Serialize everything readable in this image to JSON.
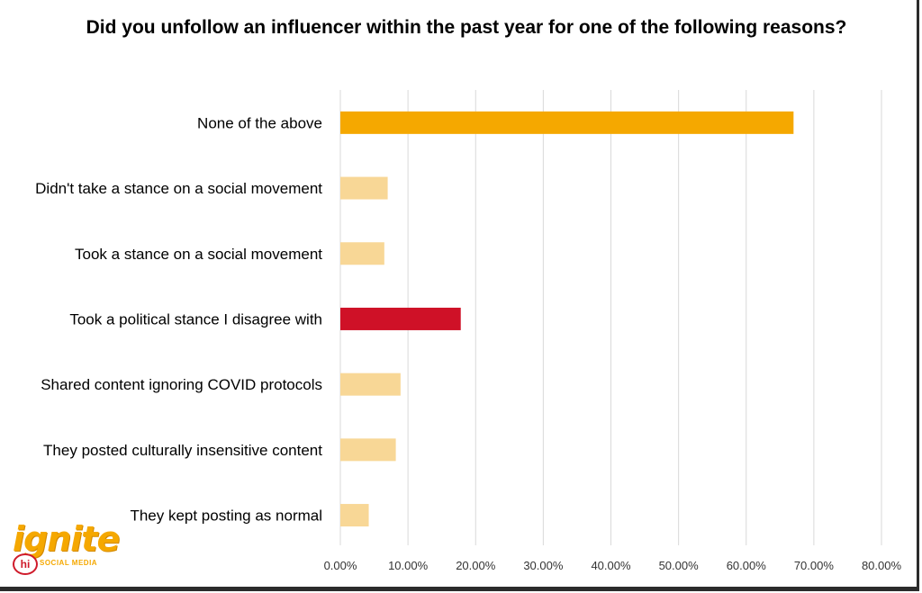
{
  "chart_data": {
    "type": "bar",
    "orientation": "horizontal",
    "title": "Did you unfollow an influencer within the past year for one of the following reasons?",
    "categories": [
      "None of the above",
      "Didn't take a stance on a social movement",
      "Took a stance on a social movement",
      "Took a political stance I disagree with",
      "Shared content ignoring COVID protocols",
      "They posted culturally insensitive content",
      "They kept posting as normal"
    ],
    "values": [
      0.67,
      0.07,
      0.065,
      0.178,
      0.089,
      0.082,
      0.042
    ],
    "bar_colors": [
      "#f5a800",
      "#f8d796",
      "#f8d796",
      "#cf1127",
      "#f8d796",
      "#f8d796",
      "#f8d796"
    ],
    "xlim": [
      0,
      0.8
    ],
    "x_ticks": [
      0,
      0.1,
      0.2,
      0.3,
      0.4,
      0.5,
      0.6,
      0.7,
      0.8
    ],
    "x_tick_labels": [
      "0.00%",
      "10.00%",
      "20.00%",
      "30.00%",
      "40.00%",
      "50.00%",
      "60.00%",
      "70.00%",
      "80.00%"
    ],
    "grid": true,
    "legend": "none",
    "gridline_color": "#d9d9d9"
  },
  "logo": {
    "word": "ignite",
    "badge": "hi",
    "subtitle": "SOCIAL MEDIA"
  }
}
